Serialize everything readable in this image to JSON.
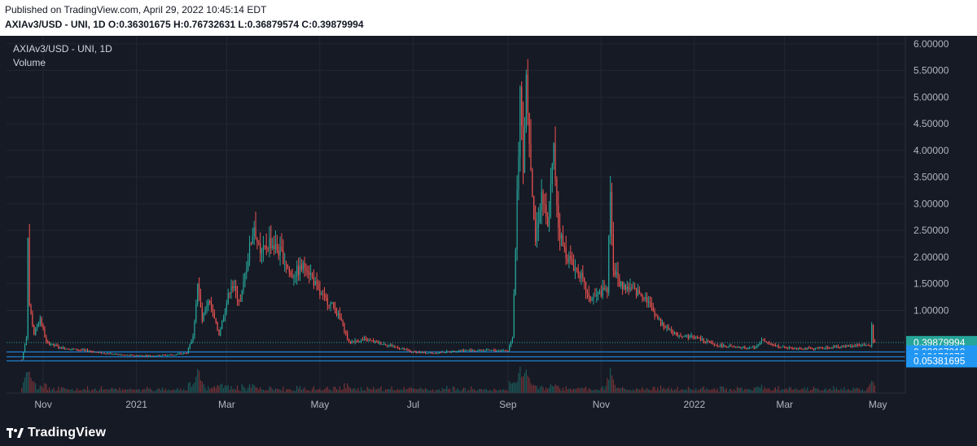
{
  "header": {
    "published": "Published on TradingView.com, April 29, 2022 10:45:14 EDT",
    "ohlc": "AXIAv3/USD - UNI, 1D O:0.36301675 H:0.76732631 L:0.36879574 C:0.39879994"
  },
  "chart_data": {
    "type": "candlestick",
    "title": "AXIAv3/USD - UNI, 1D",
    "subtitle": "Volume",
    "y_ticks": [
      "6.00000",
      "5.50000",
      "5.00000",
      "4.50000",
      "4.00000",
      "3.50000",
      "3.00000",
      "2.50000",
      "2.00000",
      "1.50000",
      "1.00000"
    ],
    "y_tick_values": [
      6.0,
      5.5,
      5.0,
      4.5,
      4.0,
      3.5,
      3.0,
      2.5,
      2.0,
      1.5,
      1.0
    ],
    "ylim": [
      -0.55,
      6.15
    ],
    "x_ticks": [
      "Nov",
      "2021",
      "Mar",
      "May",
      "Jul",
      "Sep",
      "Nov",
      "2022",
      "Mar",
      "May"
    ],
    "x_tick_dates": [
      "2020-11-01",
      "2021-01-01",
      "2021-03-01",
      "2021-05-01",
      "2021-07-01",
      "2021-09-01",
      "2021-11-01",
      "2022-01-01",
      "2022-03-01",
      "2022-05-01"
    ],
    "x_range": [
      "2020-10-08",
      "2022-05-19"
    ],
    "price_labels": [
      {
        "text": "0.39879994",
        "value": 0.39879994,
        "color": "#26a69a"
      },
      {
        "text": "0.22267018",
        "value": 0.22267018,
        "color": "#2196f3"
      },
      {
        "text": "0.13176373",
        "value": 0.13176373,
        "color": "#2196f3"
      },
      {
        "text": "0.05381695",
        "value": 0.05381695,
        "color": "#2196f3"
      }
    ],
    "horizontal_lines": [
      0.22267018,
      0.13176373,
      0.05381695
    ],
    "close_line": 0.39879994,
    "price_path": [
      [
        "2020-10-18",
        0.08
      ],
      [
        "2020-10-21",
        0.5
      ],
      [
        "2020-10-22",
        2.45
      ],
      [
        "2020-10-23",
        1.1
      ],
      [
        "2020-10-26",
        0.55
      ],
      [
        "2020-10-30",
        0.85
      ],
      [
        "2020-11-03",
        0.4
      ],
      [
        "2020-11-12",
        0.3
      ],
      [
        "2020-11-25",
        0.26
      ],
      [
        "2020-12-10",
        0.2
      ],
      [
        "2020-12-25",
        0.16
      ],
      [
        "2021-01-10",
        0.15
      ],
      [
        "2021-01-25",
        0.17
      ],
      [
        "2021-02-03",
        0.2
      ],
      [
        "2021-02-07",
        0.5
      ],
      [
        "2021-02-10",
        1.5
      ],
      [
        "2021-02-13",
        0.8
      ],
      [
        "2021-02-17",
        1.2
      ],
      [
        "2021-02-24",
        0.55
      ],
      [
        "2021-03-04",
        1.5
      ],
      [
        "2021-03-10",
        1.15
      ],
      [
        "2021-03-15",
        2.0
      ],
      [
        "2021-03-19",
        2.6
      ],
      [
        "2021-03-23",
        2.0
      ],
      [
        "2021-03-29",
        2.3
      ],
      [
        "2021-04-06",
        2.05
      ],
      [
        "2021-04-12",
        1.65
      ],
      [
        "2021-04-22",
        1.85
      ],
      [
        "2021-05-01",
        1.3
      ],
      [
        "2021-05-09",
        1.1
      ],
      [
        "2021-05-15",
        0.8
      ],
      [
        "2021-05-20",
        0.4
      ],
      [
        "2021-05-30",
        0.45
      ],
      [
        "2021-06-15",
        0.35
      ],
      [
        "2021-06-30",
        0.22
      ],
      [
        "2021-07-15",
        0.2
      ],
      [
        "2021-08-01",
        0.25
      ],
      [
        "2021-08-20",
        0.25
      ],
      [
        "2021-09-01",
        0.25
      ],
      [
        "2021-09-04",
        0.5
      ],
      [
        "2021-09-07",
        3.1
      ],
      [
        "2021-09-09",
        5.0
      ],
      [
        "2021-09-11",
        3.5
      ],
      [
        "2021-09-13",
        5.4
      ],
      [
        "2021-09-16",
        3.7
      ],
      [
        "2021-09-19",
        2.3
      ],
      [
        "2021-09-23",
        3.2
      ],
      [
        "2021-09-27",
        2.5
      ],
      [
        "2021-10-01",
        4.0
      ],
      [
        "2021-10-04",
        2.6
      ],
      [
        "2021-10-07",
        2.2
      ],
      [
        "2021-10-12",
        1.9
      ],
      [
        "2021-10-18",
        1.7
      ],
      [
        "2021-10-24",
        1.2
      ],
      [
        "2021-10-30",
        1.3
      ],
      [
        "2021-11-05",
        1.4
      ],
      [
        "2021-11-07",
        3.3
      ],
      [
        "2021-11-09",
        1.8
      ],
      [
        "2021-11-13",
        1.5
      ],
      [
        "2021-11-20",
        1.4
      ],
      [
        "2021-11-30",
        1.25
      ],
      [
        "2021-12-10",
        0.75
      ],
      [
        "2021-12-20",
        0.55
      ],
      [
        "2022-01-01",
        0.5
      ],
      [
        "2022-01-15",
        0.35
      ],
      [
        "2022-01-30",
        0.3
      ],
      [
        "2022-02-10",
        0.3
      ],
      [
        "2022-02-14",
        0.45
      ],
      [
        "2022-02-20",
        0.35
      ],
      [
        "2022-03-01",
        0.3
      ],
      [
        "2022-03-20",
        0.28
      ],
      [
        "2022-04-10",
        0.33
      ],
      [
        "2022-04-20",
        0.35
      ],
      [
        "2022-04-26",
        0.34
      ],
      [
        "2022-04-27",
        0.7
      ],
      [
        "2022-04-28",
        0.42
      ],
      [
        "2022-04-29",
        0.4
      ]
    ],
    "volume_spikes": [
      [
        "2020-10-22",
        1.0
      ],
      [
        "2021-02-10",
        0.9
      ],
      [
        "2021-03-19",
        0.35
      ],
      [
        "2021-09-09",
        0.95
      ],
      [
        "2021-09-13",
        0.85
      ],
      [
        "2021-11-07",
        0.8
      ],
      [
        "2022-04-27",
        0.45
      ]
    ],
    "colors": {
      "background": "#161a25",
      "grid": "#242733",
      "up": "#26a69a",
      "down": "#ef5350",
      "hline": "#2196f3",
      "axis_text": "#b2b5be"
    }
  },
  "footer": {
    "brand": "TradingView"
  }
}
